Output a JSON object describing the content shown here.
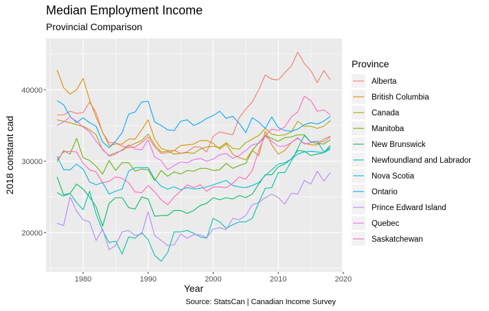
{
  "chart_data": {
    "type": "line",
    "title": "Median Employment Income",
    "subtitle": "Provincial Comparison",
    "xlabel": "Year",
    "ylabel": "2018 constant cad",
    "caption": "Source: StatsCan | Canadian Income Survey",
    "legend_title": "Province",
    "legend_position": "right",
    "grid": true,
    "xlim": [
      1974.3,
      2019.8
    ],
    "ylim": [
      14500,
      47200
    ],
    "x_ticks": [
      1980,
      1990,
      2000,
      2010,
      2020
    ],
    "y_ticks": [
      20000,
      30000,
      40000
    ],
    "x": [
      1976,
      1977,
      1978,
      1979,
      1980,
      1981,
      1982,
      1983,
      1984,
      1985,
      1986,
      1987,
      1988,
      1989,
      1990,
      1991,
      1992,
      1993,
      1994,
      1995,
      1996,
      1997,
      1998,
      1999,
      2000,
      2001,
      2002,
      2003,
      2004,
      2005,
      2006,
      2007,
      2008,
      2009,
      2010,
      2011,
      2012,
      2013,
      2014,
      2015,
      2016,
      2017,
      2018
    ],
    "series": [
      {
        "name": "Alberta",
        "color": "#F8766D",
        "values": [
          36500,
          36500,
          37000,
          36700,
          36800,
          38300,
          36800,
          34000,
          32600,
          32600,
          32100,
          31900,
          32000,
          32600,
          33400,
          32000,
          31100,
          31200,
          31500,
          31100,
          31300,
          32000,
          32000,
          31300,
          33500,
          34100,
          33900,
          33700,
          36100,
          37300,
          38300,
          40000,
          42100,
          41500,
          41400,
          42400,
          43300,
          45300,
          43700,
          42700,
          41000,
          42700,
          41400
        ]
      },
      {
        "name": "British Columbia",
        "color": "#DB8E00",
        "values": [
          42800,
          40300,
          39400,
          40000,
          41600,
          38600,
          36200,
          34100,
          32200,
          32400,
          32400,
          33100,
          33100,
          34400,
          35800,
          33100,
          31800,
          31500,
          31500,
          32200,
          32300,
          32400,
          32900,
          32900,
          32500,
          31700,
          32400,
          31000,
          30500,
          30200,
          31500,
          30800,
          34200,
          32300,
          31000,
          31500,
          32600,
          33200,
          32500,
          32300,
          32300,
          33100,
          33500
        ]
      },
      {
        "name": "Canada",
        "color": "#AEA200",
        "values": [
          35800,
          35600,
          35400,
          35100,
          34900,
          34400,
          33700,
          31600,
          30800,
          31200,
          31500,
          32100,
          32500,
          32900,
          33800,
          32300,
          31300,
          31400,
          31000,
          31100,
          31200,
          31100,
          31700,
          32000,
          32100,
          31900,
          32600,
          31800,
          31700,
          32600,
          33100,
          33600,
          34600,
          33800,
          33600,
          33700,
          34100,
          35600,
          34900,
          34900,
          34600,
          34900,
          35700
        ]
      },
      {
        "name": "Manitoba",
        "color": "#64B200",
        "values": [
          29900,
          31500,
          31000,
          33200,
          30500,
          30100,
          29300,
          28200,
          30100,
          28700,
          29800,
          29800,
          28600,
          28900,
          28800,
          27300,
          28700,
          27900,
          28500,
          28200,
          28700,
          28600,
          29000,
          29000,
          28700,
          28800,
          29700,
          29000,
          29400,
          29700,
          31500,
          32600,
          33600,
          33200,
          32800,
          33300,
          33400,
          33700,
          33700,
          32700,
          32500,
          32400,
          33000
        ]
      },
      {
        "name": "New Brunswick",
        "color": "#00BD5C",
        "values": [
          27800,
          25300,
          25500,
          26800,
          26100,
          25000,
          23600,
          20900,
          24100,
          24900,
          24900,
          23500,
          23300,
          25000,
          24700,
          22300,
          22400,
          22400,
          23100,
          23100,
          22700,
          23100,
          23800,
          24100,
          24900,
          24600,
          24900,
          24700,
          25200,
          24900,
          25400,
          26800,
          28100,
          28100,
          29200,
          29600,
          30300,
          31500,
          31400,
          30800,
          31000,
          31200,
          32200
        ]
      },
      {
        "name": "Newfoundland and Labrador",
        "color": "#00C1A7",
        "values": [
          25600,
          25100,
          25500,
          24200,
          23200,
          25800,
          22600,
          20300,
          18600,
          18800,
          17000,
          19400,
          19200,
          20000,
          19000,
          16800,
          16000,
          17200,
          20100,
          20100,
          20300,
          19900,
          19400,
          19200,
          22000,
          21500,
          20600,
          21100,
          21500,
          21500,
          22000,
          24200,
          26200,
          26300,
          28400,
          28400,
          30000,
          31800,
          33600,
          32700,
          32800,
          31300,
          31900
        ]
      },
      {
        "name": "Nova Scotia",
        "color": "#00BADE",
        "values": [
          30700,
          28800,
          28800,
          29600,
          28900,
          27100,
          26700,
          27000,
          25400,
          25800,
          26100,
          28600,
          29100,
          29100,
          29100,
          27500,
          26500,
          26100,
          26400,
          26000,
          26300,
          26100,
          26200,
          26400,
          26700,
          27000,
          27300,
          26600,
          26400,
          26300,
          26600,
          27000,
          28000,
          28800,
          29600,
          29800,
          30300,
          31000,
          31300,
          31400,
          31300,
          31200,
          31700
        ]
      },
      {
        "name": "Ontario",
        "color": "#00A6FF",
        "values": [
          38500,
          37900,
          36300,
          35400,
          36100,
          35400,
          34900,
          32700,
          31900,
          32800,
          34000,
          36600,
          36900,
          38300,
          38400,
          35500,
          35000,
          34400,
          34300,
          35600,
          35800,
          35000,
          35400,
          36000,
          36400,
          37000,
          36000,
          36300,
          35300,
          34000,
          36100,
          35500,
          34600,
          36200,
          34700,
          34300,
          34200,
          34500,
          35100,
          35400,
          35200,
          35600,
          36300
        ]
      },
      {
        "name": "Prince Edward Island",
        "color": "#B385FF",
        "values": [
          21300,
          21000,
          25000,
          23000,
          21800,
          21500,
          18900,
          20500,
          17600,
          18200,
          20100,
          20300,
          19600,
          19800,
          22900,
          19600,
          18900,
          18200,
          18300,
          19800,
          19200,
          19700,
          19700,
          19300,
          20500,
          20700,
          20400,
          22000,
          21800,
          22400,
          23900,
          24200,
          24900,
          25400,
          24900,
          24000,
          25500,
          25400,
          27300,
          26800,
          28600,
          27200,
          28400
        ]
      },
      {
        "name": "Quebec",
        "color": "#EF67EB",
        "values": [
          35000,
          35500,
          36200,
          35600,
          34800,
          34100,
          32800,
          31700,
          30700,
          31000,
          31600,
          32300,
          31700,
          31600,
          33000,
          30600,
          30100,
          28800,
          29400,
          29900,
          29800,
          30200,
          30400,
          30000,
          30300,
          30900,
          31100,
          30400,
          30800,
          31500,
          32300,
          32500,
          33500,
          32800,
          32100,
          32100,
          32600,
          33300,
          32400,
          32600,
          32800,
          32700,
          33400
        ]
      },
      {
        "name": "Saskatchewan",
        "color": "#FF63B6",
        "values": [
          30200,
          31300,
          31400,
          31300,
          29700,
          28800,
          28500,
          27000,
          27200,
          27800,
          27600,
          27000,
          25700,
          25600,
          26600,
          25700,
          24600,
          23900,
          25000,
          25800,
          26700,
          26300,
          26700,
          25800,
          26400,
          26400,
          26300,
          26900,
          27800,
          27500,
          28700,
          31500,
          33600,
          34500,
          34300,
          34800,
          36200,
          36900,
          39100,
          38500,
          37000,
          37200,
          36500
        ]
      }
    ]
  }
}
